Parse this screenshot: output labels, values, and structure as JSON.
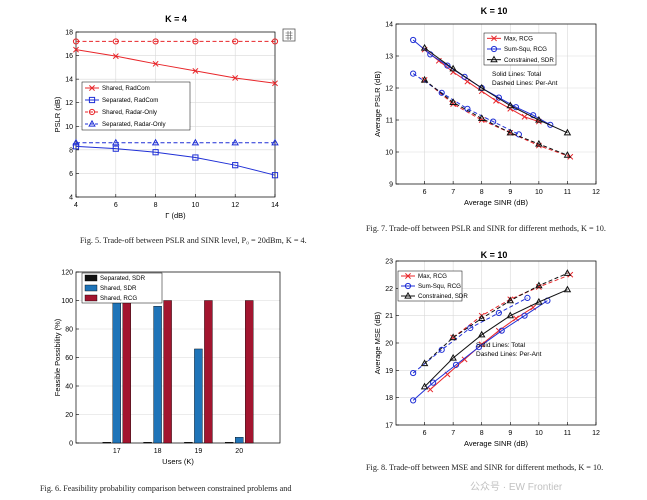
{
  "chart_data": [
    {
      "id": "fig5",
      "type": "line",
      "title": "K = 4",
      "xlabel": "Γ (dB)",
      "ylabel": "PSLR (dB)",
      "xlim": [
        4,
        14
      ],
      "ylim": [
        4,
        18
      ],
      "xticks": [
        "4",
        "6",
        "8",
        "10",
        "12",
        "14"
      ],
      "yticks": [
        "4",
        "6",
        "8",
        "10",
        "12",
        "14",
        "16",
        "18"
      ],
      "legend_position": "center-left",
      "series": [
        {
          "name": "Shared, RadCom",
          "color": "#e8262a",
          "dash": "solid",
          "marker": "x",
          "x": [
            4,
            6,
            8,
            10,
            12,
            14
          ],
          "y": [
            16.5,
            15.95,
            15.3,
            14.7,
            14.1,
            13.65
          ]
        },
        {
          "name": "Separated, RadCom",
          "color": "#1f2fd6",
          "dash": "solid",
          "marker": "square",
          "x": [
            4,
            6,
            8,
            10,
            12,
            14
          ],
          "y": [
            8.3,
            8.1,
            7.8,
            7.35,
            6.7,
            5.85
          ]
        },
        {
          "name": "Shared, Radar-Only",
          "color": "#e8262a",
          "dash": "dashed",
          "marker": "circle",
          "x": [
            4,
            6,
            8,
            10,
            12,
            14
          ],
          "y": [
            17.2,
            17.2,
            17.2,
            17.2,
            17.2,
            17.2
          ]
        },
        {
          "name": "Separated, Radar-Only",
          "color": "#1f2fd6",
          "dash": "dashed",
          "marker": "triangle",
          "x": [
            4,
            6,
            8,
            10,
            12,
            14
          ],
          "y": [
            8.6,
            8.6,
            8.6,
            8.6,
            8.6,
            8.6
          ]
        }
      ]
    },
    {
      "id": "fig7",
      "type": "line",
      "title": "K = 10",
      "xlabel": "Average SINR (dB)",
      "ylabel": "Average PSLR (dB)",
      "xlim": [
        5,
        12
      ],
      "ylim": [
        9,
        14
      ],
      "xticks": [
        "6",
        "7",
        "8",
        "9",
        "10",
        "11",
        "12"
      ],
      "yticks": [
        "9",
        "10",
        "11",
        "12",
        "13",
        "14"
      ],
      "legend_position": "top-right",
      "annotation": [
        "Solid Lines: Total",
        "Dashed Lines: Per-Ant"
      ],
      "series": [
        {
          "name": "Max, RCG",
          "color": "#e8262a",
          "dash": "solid",
          "marker": "x",
          "x": [
            6,
            6.5,
            7,
            7.5,
            8,
            8.5,
            9,
            9.5,
            10
          ],
          "y": [
            13.2,
            12.85,
            12.5,
            12.2,
            11.9,
            11.6,
            11.35,
            11.1,
            10.95
          ]
        },
        {
          "name": "Sum-Squ, RCG",
          "color": "#1f2fd6",
          "dash": "solid",
          "marker": "circle",
          "x": [
            5.6,
            6.2,
            6.8,
            7.4,
            8,
            8.6,
            9.2,
            9.8,
            10.4
          ],
          "y": [
            13.5,
            13.05,
            12.7,
            12.35,
            12.0,
            11.7,
            11.4,
            11.15,
            10.85
          ]
        },
        {
          "name": "Constrained, SDR",
          "color": "#111111",
          "dash": "solid",
          "marker": "triangle",
          "x": [
            6,
            7,
            8,
            9,
            10,
            11
          ],
          "y": [
            13.25,
            12.6,
            12.0,
            11.45,
            11.0,
            10.6
          ]
        },
        {
          "name": "Max, RCG (per-ant)",
          "color": "#e8262a",
          "dash": "dashed",
          "marker": "x",
          "x": [
            6,
            7,
            8,
            9,
            10,
            11.1
          ],
          "y": [
            12.25,
            11.5,
            11.0,
            10.6,
            10.2,
            9.85
          ]
        },
        {
          "name": "Sum-Squ, RCG (per-ant)",
          "color": "#1f2fd6",
          "dash": "dashed",
          "marker": "circle",
          "x": [
            5.6,
            6.6,
            7.5,
            8.4,
            9.3
          ],
          "y": [
            12.45,
            11.85,
            11.35,
            10.95,
            10.55
          ]
        },
        {
          "name": "Constrained, SDR (per-ant)",
          "color": "#111111",
          "dash": "dashed",
          "marker": "triangle",
          "x": [
            6,
            7,
            8,
            9,
            10,
            11
          ],
          "y": [
            12.25,
            11.55,
            11.05,
            10.6,
            10.25,
            9.9
          ]
        }
      ]
    },
    {
      "id": "fig6",
      "type": "bar",
      "title": "",
      "xlabel": "Users (K)",
      "ylabel": "Feasible Possibility (%)",
      "ylim": [
        0,
        120
      ],
      "yticks": [
        "0",
        "20",
        "40",
        "60",
        "80",
        "100",
        "120"
      ],
      "categories": [
        "17",
        "18",
        "19",
        "20"
      ],
      "legend_position": "top-left",
      "series": [
        {
          "name": "Separated, SDR",
          "color": "#111111",
          "values": [
            0,
            0,
            0,
            0
          ]
        },
        {
          "name": "Shared, SDR",
          "color": "#1f74b8",
          "values": [
            100,
            96,
            66,
            4
          ]
        },
        {
          "name": "Shared, RCG",
          "color": "#a3152f",
          "values": [
            100,
            100,
            100,
            100
          ]
        }
      ]
    },
    {
      "id": "fig8",
      "type": "line",
      "title": "K = 10",
      "xlabel": "Average SINR (dB)",
      "ylabel": "Average MSE (dB)",
      "xlim": [
        5,
        12
      ],
      "ylim": [
        17,
        23
      ],
      "xticks": [
        "6",
        "7",
        "8",
        "9",
        "10",
        "11",
        "12"
      ],
      "yticks": [
        "17",
        "18",
        "19",
        "20",
        "21",
        "22",
        "23"
      ],
      "legend_position": "top-left",
      "annotation": [
        "Solid Lines: Total",
        "Dashed Lines: Per-Ant"
      ],
      "series": [
        {
          "name": "Max, RCG",
          "color": "#e8262a",
          "dash": "solid",
          "marker": "x",
          "x": [
            6.2,
            6.8,
            7.4,
            8,
            8.6,
            9.2,
            9.8
          ],
          "y": [
            18.3,
            18.85,
            19.4,
            19.95,
            20.45,
            20.9,
            21.3
          ]
        },
        {
          "name": "Sum-Squ, RCG",
          "color": "#1f2fd6",
          "dash": "solid",
          "marker": "circle",
          "x": [
            5.6,
            6.3,
            7.1,
            7.9,
            8.7,
            9.5,
            10.3
          ],
          "y": [
            17.9,
            18.55,
            19.2,
            19.85,
            20.45,
            21.0,
            21.55
          ]
        },
        {
          "name": "Constrained, SDR",
          "color": "#111111",
          "dash": "solid",
          "marker": "triangle",
          "x": [
            6,
            7,
            8,
            9,
            10,
            11
          ],
          "y": [
            18.4,
            19.45,
            20.3,
            21.0,
            21.5,
            21.95
          ]
        },
        {
          "name": "Max, RCG (per-ant)",
          "color": "#e8262a",
          "dash": "dashed",
          "marker": "x",
          "x": [
            7,
            8,
            9,
            10,
            11.1
          ],
          "y": [
            20.2,
            21.0,
            21.6,
            22.05,
            22.5
          ]
        },
        {
          "name": "Sum-Squ, RCG (per-ant)",
          "color": "#1f2fd6",
          "dash": "dashed",
          "marker": "circle",
          "x": [
            5.6,
            6.6,
            7.6,
            8.6,
            9.6
          ],
          "y": [
            18.9,
            19.75,
            20.55,
            21.1,
            21.65
          ]
        },
        {
          "name": "Constrained, SDR (per-ant)",
          "color": "#111111",
          "dash": "dashed",
          "marker": "triangle",
          "x": [
            6,
            7,
            8,
            9,
            10,
            11
          ],
          "y": [
            19.25,
            20.2,
            20.9,
            21.55,
            22.1,
            22.55
          ]
        }
      ]
    }
  ],
  "captions": {
    "fig5": "Fig. 5.   Trade-off between PSLR and SINR level, P₀ = 20dBm, K = 4.",
    "fig7": "Fig. 7.   Trade-off between PSLR and SINR for different methods, K = 10.",
    "fig6_line1": "Fig. 6.   Feasibility probability comparison between constrained problems and",
    "fig8": "Fig. 8.   Trade-off between MSE and SINR for different methods, K = 10."
  },
  "watermark": "公众号 · EW Frontier",
  "colors": {
    "axis": "#000000",
    "grid": "#d9d9d9"
  }
}
